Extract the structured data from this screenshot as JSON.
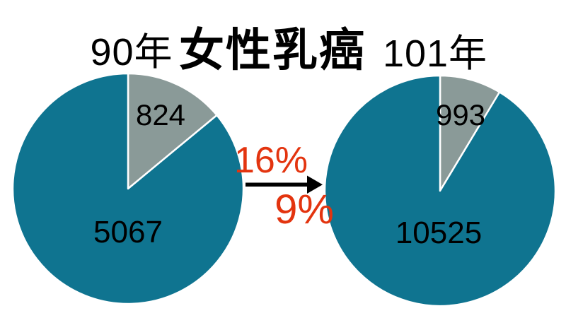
{
  "page": {
    "background": "#FFFFFF"
  },
  "header": {
    "left_year": "90年",
    "title": "女性乳癌",
    "right_year": "101年"
  },
  "annotations": {
    "top_percent": "16%",
    "bottom_percent": "9%"
  },
  "colors": {
    "teal": "#0F7490",
    "gray": "#8A9A98",
    "red": "#E3340F",
    "arrow": "#000000",
    "divider": "#FFFFFF",
    "text": "#000000"
  },
  "chart_data": [
    {
      "type": "pie",
      "title": "90年",
      "start_angle_deg": 0,
      "direction": "clockwise",
      "legend": "none",
      "slices": [
        {
          "value": 824,
          "label": "824",
          "color_key": "gray"
        },
        {
          "value": 5067,
          "label": "5067",
          "color_key": "teal"
        }
      ]
    },
    {
      "type": "pie",
      "title": "101年",
      "start_angle_deg": 0,
      "direction": "clockwise",
      "legend": "none",
      "slices": [
        {
          "value": 993,
          "label": "993",
          "color_key": "gray"
        },
        {
          "value": 10525,
          "label": "10525",
          "color_key": "teal"
        }
      ]
    }
  ]
}
